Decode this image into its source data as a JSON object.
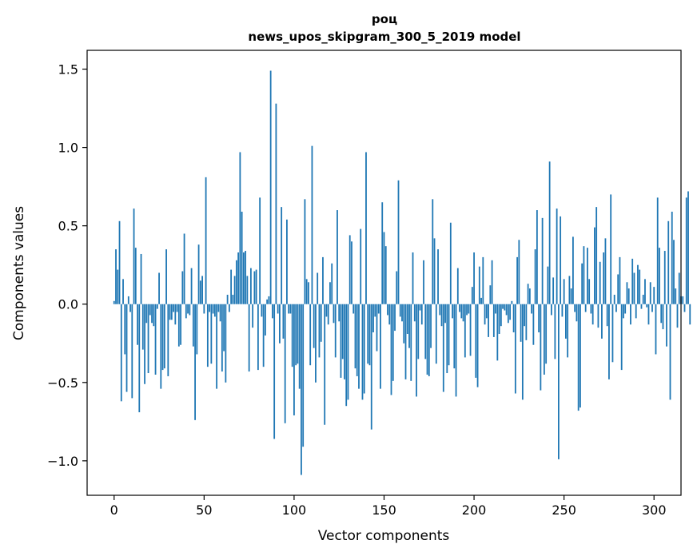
{
  "chart_data": {
    "type": "bar",
    "title_line1": "роц",
    "title_line2": "news_upos_skipgram_300_5_2019 model",
    "xlabel": "Vector components",
    "ylabel": "Components values",
    "xlim": [
      -15,
      315
    ],
    "ylim": [
      -1.22,
      1.62
    ],
    "xticks": [
      0,
      50,
      100,
      150,
      200,
      250,
      300
    ],
    "xtick_labels": [
      "0",
      "50",
      "100",
      "150",
      "200",
      "250",
      "300"
    ],
    "yticks": [
      -1.0,
      -0.5,
      0.0,
      0.5,
      1.0,
      1.5
    ],
    "ytick_labels": [
      "−1.0",
      "−0.5",
      "0.0",
      "0.5",
      "1.0",
      "1.5"
    ],
    "bar_color": "#1f77b4",
    "values": [
      0.02,
      0.35,
      0.22,
      0.53,
      -0.62,
      0.16,
      -0.32,
      -0.56,
      0.05,
      -0.05,
      -0.6,
      0.61,
      0.36,
      -0.26,
      -0.69,
      0.32,
      -0.29,
      -0.51,
      -0.12,
      -0.44,
      -0.07,
      -0.12,
      -0.14,
      -0.45,
      -0.03,
      0.2,
      -0.54,
      -0.42,
      -0.41,
      0.35,
      -0.46,
      -0.1,
      -0.1,
      -0.05,
      -0.13,
      -0.05,
      -0.27,
      -0.26,
      0.21,
      0.45,
      -0.09,
      -0.06,
      -0.07,
      0.23,
      -0.27,
      -0.74,
      -0.32,
      0.38,
      0.15,
      0.18,
      -0.06,
      0.81,
      -0.4,
      -0.05,
      -0.38,
      -0.06,
      -0.08,
      -0.54,
      -0.05,
      -0.11,
      -0.43,
      -0.3,
      -0.5,
      0.06,
      -0.05,
      0.22,
      0.06,
      0.18,
      0.28,
      0.33,
      0.97,
      0.59,
      0.33,
      0.34,
      0.18,
      -0.43,
      0.23,
      -0.15,
      0.21,
      0.22,
      -0.42,
      0.68,
      -0.08,
      -0.4,
      -0.2,
      0.03,
      0.05,
      1.49,
      -0.09,
      -0.86,
      1.28,
      -0.06,
      -0.25,
      0.62,
      -0.22,
      -0.76,
      0.54,
      -0.06,
      -0.06,
      -0.4,
      -0.71,
      -0.39,
      -0.38,
      -0.54,
      -1.09,
      -0.91,
      0.67,
      0.16,
      0.14,
      -0.39,
      1.01,
      -0.28,
      -0.5,
      0.2,
      -0.34,
      -0.24,
      0.3,
      -0.77,
      -0.08,
      -0.13,
      0.14,
      0.26,
      -0.12,
      -0.34,
      0.6,
      -0.11,
      -0.47,
      -0.35,
      -0.48,
      -0.65,
      -0.61,
      0.44,
      0.4,
      -0.06,
      -0.41,
      -0.46,
      -0.54,
      0.48,
      -0.61,
      -0.57,
      0.97,
      -0.38,
      -0.39,
      -0.8,
      -0.18,
      -0.08,
      -0.3,
      -0.06,
      -0.54,
      0.65,
      0.46,
      0.37,
      -0.07,
      -0.13,
      -0.58,
      -0.49,
      -0.17,
      0.21,
      0.79,
      -0.08,
      -0.11,
      -0.25,
      -0.48,
      -0.19,
      -0.28,
      -0.49,
      0.33,
      -0.11,
      -0.59,
      -0.35,
      -0.04,
      -0.13,
      0.28,
      -0.35,
      -0.45,
      -0.46,
      -0.28,
      0.67,
      0.42,
      -0.38,
      0.35,
      -0.07,
      -0.14,
      -0.56,
      -0.12,
      -0.44,
      -0.39,
      0.52,
      -0.09,
      -0.41,
      -0.59,
      0.23,
      -0.05,
      -0.09,
      -0.11,
      -0.34,
      -0.07,
      -0.06,
      -0.33,
      0.11,
      0.33,
      -0.47,
      -0.53,
      0.24,
      0.04,
      0.3,
      -0.13,
      -0.09,
      -0.21,
      0.12,
      0.28,
      -0.21,
      -0.06,
      -0.36,
      -0.19,
      -0.14,
      -0.03,
      -0.04,
      -0.07,
      -0.12,
      -0.1,
      0.02,
      -0.18,
      -0.57,
      0.3,
      0.41,
      -0.24,
      -0.61,
      -0.14,
      -0.23,
      0.13,
      0.1,
      -0.06,
      -0.26,
      0.35,
      0.6,
      -0.18,
      -0.55,
      0.55,
      -0.45,
      -0.38,
      0.24,
      0.91,
      -0.07,
      0.17,
      -0.35,
      0.61,
      -0.99,
      0.56,
      -0.08,
      0.16,
      -0.22,
      -0.34,
      0.18,
      0.1,
      0.43,
      -0.05,
      -0.11,
      -0.68,
      -0.66,
      0.26,
      0.37,
      -0.05,
      0.36,
      0.16,
      -0.06,
      -0.13,
      0.49,
      0.62,
      -0.15,
      0.27,
      -0.22,
      0.33,
      0.42,
      -0.14,
      -0.48,
      0.7,
      -0.37,
      0.06,
      -0.05,
      0.19,
      0.3,
      -0.42,
      -0.09,
      -0.06,
      0.14,
      0.1,
      -0.13,
      0.29,
      0.2,
      -0.09,
      0.25,
      0.22,
      -0.03,
      0.06,
      0.16,
      -0.02,
      -0.13,
      0.14,
      -0.05,
      0.11,
      -0.32,
      0.68,
      0.36,
      -0.12,
      -0.16,
      0.34,
      -0.27,
      0.53,
      -0.61,
      0.59,
      0.41,
      0.1,
      -0.15,
      0.2,
      0.05,
      0.05,
      -0.05,
      0.68,
      0.72,
      -0.13
    ]
  }
}
